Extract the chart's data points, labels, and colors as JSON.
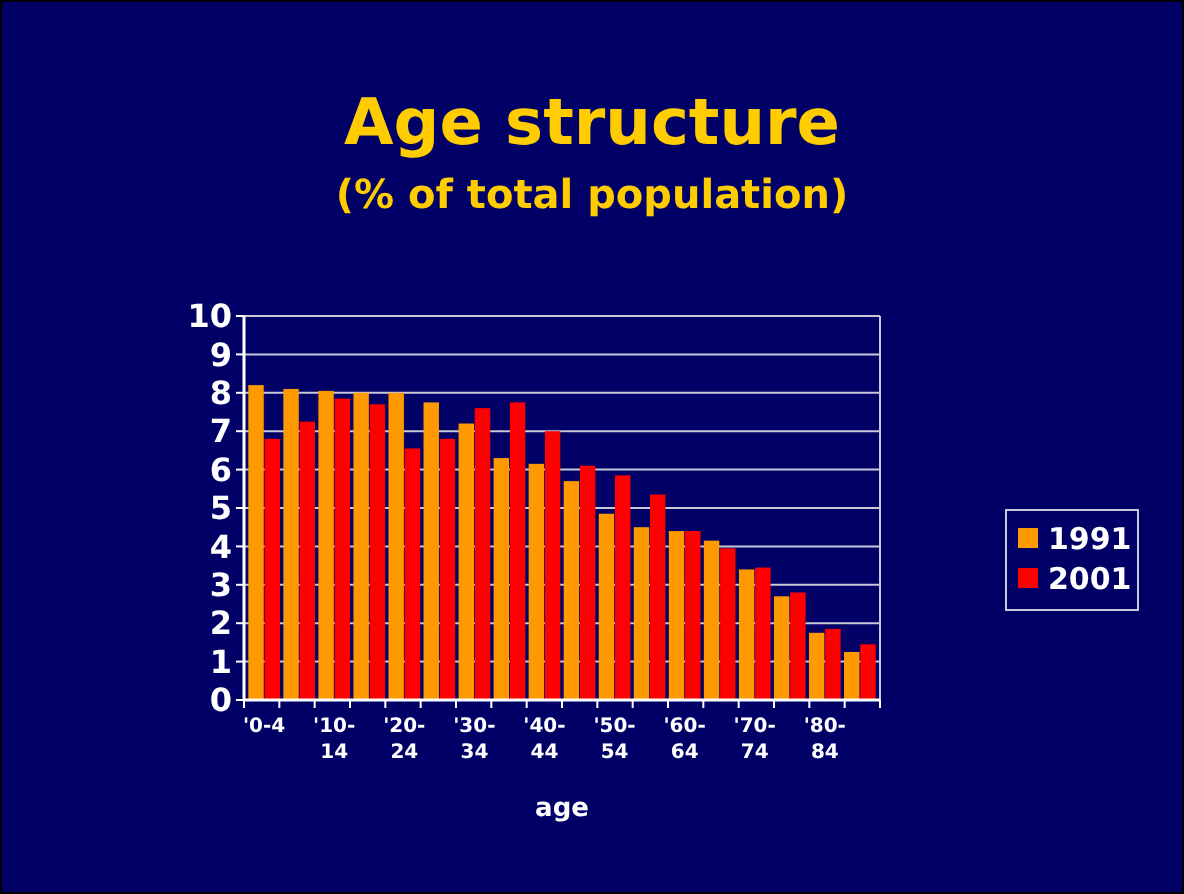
{
  "chart_data": {
    "type": "bar",
    "title": "Age structure",
    "subtitle": "(% of total population)",
    "xlabel": "age",
    "categories": [
      "'0-4",
      null,
      "'10-14",
      null,
      "'20-24",
      null,
      "'30-34",
      null,
      "'40-44",
      null,
      "'50-54",
      null,
      "'60-64",
      null,
      "'70-74",
      null,
      "'80-84",
      null
    ],
    "series": [
      {
        "name": "1991",
        "color": "#ff9900",
        "values": [
          8.2,
          8.1,
          8.05,
          8.0,
          8.0,
          7.75,
          7.2,
          6.3,
          6.15,
          5.7,
          4.85,
          4.5,
          4.4,
          4.15,
          3.4,
          2.7,
          1.75,
          1.25
        ]
      },
      {
        "name": "2001",
        "color": "#ff0000",
        "values": [
          6.8,
          7.25,
          7.85,
          7.7,
          6.55,
          6.8,
          7.6,
          7.75,
          7.0,
          6.1,
          5.85,
          5.35,
          4.4,
          3.95,
          3.45,
          2.8,
          1.85,
          1.45
        ]
      }
    ],
    "ylim": [
      0,
      10
    ],
    "yticks": [
      0,
      1,
      2,
      3,
      4,
      5,
      6,
      7,
      8,
      9,
      10
    ],
    "grid": "y",
    "legend": "right"
  }
}
